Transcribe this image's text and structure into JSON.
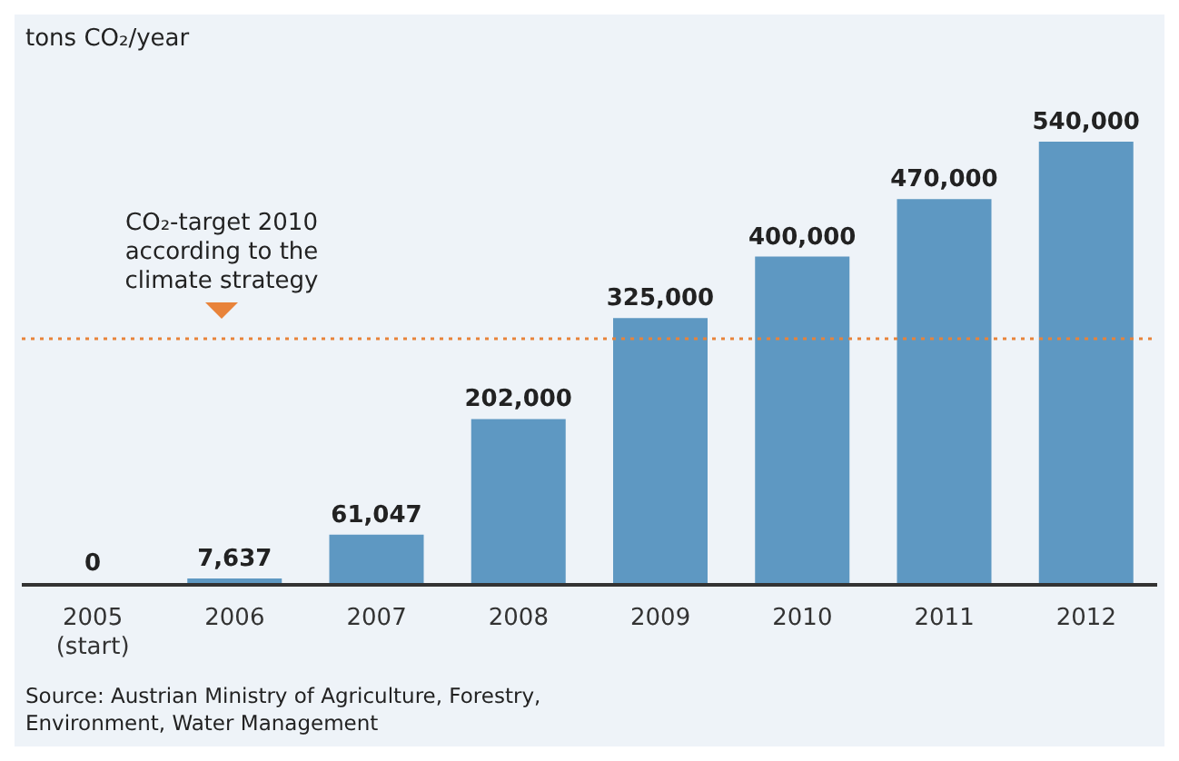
{
  "chart_data": {
    "type": "bar",
    "ylabel": "tons CO₂/year",
    "categories": [
      "2005\n(start)",
      "2006",
      "2007",
      "2008",
      "2009",
      "2010",
      "2011",
      "2012"
    ],
    "values": [
      0,
      7637,
      61047,
      202000,
      325000,
      400000,
      470000,
      540000
    ],
    "value_labels": [
      "0",
      "7,637",
      "61,047",
      "202,000",
      "325,000",
      "400,000",
      "470,000",
      "540,000"
    ],
    "color": "#5e98c2",
    "tick_labels": "x",
    "legend": false,
    "ref_lines": [
      {
        "axis": "y",
        "value": 300000,
        "label": "CO₂-target 2010\naccording to the\nclimate strategy",
        "color": "#e8833a",
        "line_style": "dotted"
      }
    ],
    "annotations": [
      "Source: Austrian Ministry of Agriculture, Forestry, Environment, Water Management"
    ]
  }
}
